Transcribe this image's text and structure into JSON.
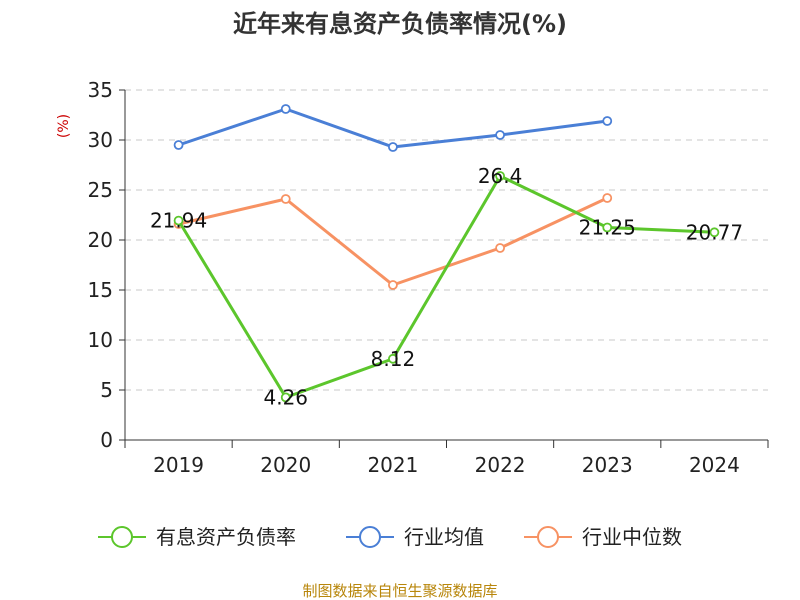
{
  "chart_data": {
    "type": "line",
    "title": "近年来有息资产负债率情况(%)",
    "ylabel": "(%)",
    "ylim": [
      0,
      35
    ],
    "yticks": [
      0,
      5,
      10,
      15,
      20,
      25,
      30,
      35
    ],
    "categories": [
      "2019",
      "2020",
      "2021",
      "2022",
      "2023",
      "2024"
    ],
    "grid": true,
    "legend_position": "bottom",
    "series": [
      {
        "name": "有息资产负债率",
        "color": "#5cc62c",
        "values": [
          21.94,
          4.26,
          8.12,
          26.4,
          21.25,
          20.77
        ],
        "labels": [
          "21.94",
          "4.26",
          "8.12",
          "26.4",
          "21.25",
          "20.77"
        ]
      },
      {
        "name": "行业均值",
        "color": "#4a7fd6",
        "values": [
          29.5,
          33.1,
          29.3,
          30.5,
          31.9,
          null
        ]
      },
      {
        "name": "行业中位数",
        "color": "#f79263",
        "values": [
          21.6,
          24.1,
          15.5,
          19.2,
          24.2,
          null
        ]
      }
    ],
    "source": "制图数据来自恒生聚源数据库"
  }
}
